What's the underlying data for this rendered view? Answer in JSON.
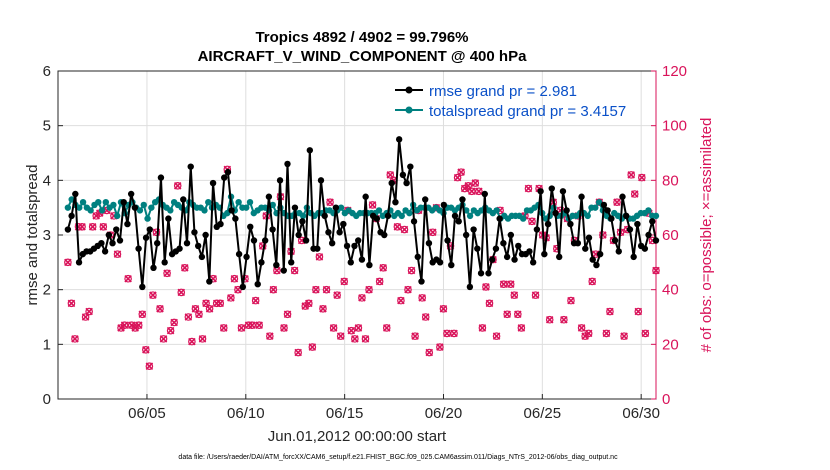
{
  "colors": {
    "rmse": "#000000",
    "spread": "#008080",
    "obs": "#d9135a",
    "legend_text": "#0a50c8"
  },
  "chart_data": {
    "type": "line",
    "title": "Tropics 4892 / 4902 = 99.796%",
    "subtitle": "AIRCRAFT_V_WIND_COMPONENT @ 400 hPa",
    "xlabel": "Jun.01,2012 00:00:00 start",
    "ylabel": "rmse and totalspread",
    "y2label": "# of obs: o=possible; ×=assimilated",
    "xlim": [
      0.5,
      30.75
    ],
    "ylim": [
      0,
      6
    ],
    "y2lim": [
      0,
      120
    ],
    "xticks": [
      5,
      10,
      15,
      20,
      25,
      30
    ],
    "xtick_labels": [
      "06/05",
      "06/10",
      "06/15",
      "06/20",
      "06/25",
      "06/30"
    ],
    "yticks": [
      0,
      1,
      2,
      3,
      4,
      5,
      6
    ],
    "ytick_labels": [
      "0",
      "1",
      "2",
      "3",
      "4",
      "5",
      "6"
    ],
    "y2ticks": [
      0,
      20,
      40,
      60,
      80,
      100,
      120
    ],
    "y2tick_labels": [
      "0",
      "20",
      "40",
      "60",
      "80",
      "100",
      "120"
    ],
    "grid": true,
    "legend_position": "top-right",
    "series": [
      {
        "name": "rmse grand pr = 2.981",
        "axis": "left",
        "values": [
          3.1,
          3.35,
          3.75,
          2.5,
          2.65,
          2.7,
          2.7,
          2.75,
          2.8,
          2.85,
          2.7,
          3.0,
          2.85,
          3.1,
          2.9,
          3.6,
          3.2,
          3.75,
          3.5,
          2.75,
          2.05,
          2.95,
          3.1,
          2.4,
          2.85,
          4.05,
          2.5,
          3.3,
          2.65,
          2.7,
          2.75,
          3.65,
          2.85,
          4.25,
          3.05,
          2.8,
          2.6,
          3.0,
          2.15,
          3.95,
          3.15,
          3.2,
          4.05,
          4.15,
          3.45,
          3.3,
          2.65,
          2.05,
          2.6,
          3.15,
          2.9,
          2.1,
          2.5,
          2.9,
          3.7,
          3.1,
          2.45,
          4.0,
          2.35,
          4.3,
          2.5,
          3.5,
          3.0,
          3.25,
          2.9,
          4.55,
          2.75,
          2.75,
          4.0,
          3.35,
          3.05,
          2.85,
          3.5,
          3.05,
          3.2,
          2.8,
          2.5,
          2.8,
          2.9,
          2.55,
          3.7,
          2.45,
          3.35,
          3.3,
          3.05,
          3.0,
          3.35,
          3.95,
          3.6,
          4.75,
          4.1,
          3.95,
          4.25,
          3.25,
          2.6,
          2.15,
          3.65,
          2.85,
          2.5,
          2.55,
          2.5,
          3.55,
          2.9,
          2.45,
          3.35,
          3.25,
          3.65,
          3.0,
          2.05,
          3.1,
          2.75,
          2.3,
          3.75,
          2.3,
          2.55,
          2.75,
          3.3,
          2.85,
          2.6,
          3.0,
          2.55,
          2.8,
          2.65,
          2.65,
          2.7,
          2.5,
          3.1,
          3.8,
          2.65,
          3.2,
          3.85,
          3.4,
          2.6,
          3.8,
          3.45,
          3.2,
          2.85,
          2.85,
          3.7,
          2.75,
          2.95,
          2.55,
          2.45,
          2.65,
          3.55,
          3.45,
          3.3,
          2.9,
          2.7,
          3.7,
          3.35,
          3.1,
          2.6,
          3.2,
          2.8,
          2.75,
          3.0,
          3.25,
          2.9
        ]
      },
      {
        "name": "totalspread grand pr = 3.4157",
        "axis": "left",
        "values": [
          3.5,
          3.65,
          3.55,
          3.5,
          3.6,
          3.5,
          3.45,
          3.55,
          3.6,
          3.45,
          3.6,
          3.5,
          3.55,
          3.35,
          3.6,
          3.4,
          3.55,
          3.6,
          3.5,
          3.45,
          3.55,
          3.3,
          3.5,
          3.6,
          3.65,
          3.55,
          3.5,
          3.45,
          3.6,
          3.55,
          3.5,
          3.45,
          3.6,
          3.55,
          3.5,
          3.5,
          3.45,
          3.6,
          3.5,
          3.55,
          3.5,
          3.35,
          3.4,
          3.7,
          3.45,
          3.6,
          3.5,
          3.5,
          3.6,
          3.4,
          3.45,
          3.5,
          3.5,
          3.45,
          3.55,
          3.4,
          3.5,
          3.4,
          3.35,
          3.35,
          3.4,
          3.4,
          3.35,
          3.5,
          3.4,
          3.35,
          3.4,
          3.4,
          3.45,
          3.45,
          3.4,
          3.45,
          3.5,
          3.4,
          3.45,
          3.4,
          3.35,
          3.4,
          3.4,
          3.4,
          3.4,
          3.4,
          3.45,
          3.35,
          3.4,
          3.45,
          3.35,
          3.4,
          3.35,
          3.45,
          3.4,
          3.55,
          3.45,
          3.5,
          3.5,
          3.5,
          3.45,
          3.5,
          3.45,
          3.4,
          3.5,
          3.5,
          3.45,
          3.5,
          3.55,
          3.45,
          3.35,
          3.45,
          3.4,
          3.45,
          3.5,
          3.45,
          3.4,
          3.45,
          3.3,
          3.35,
          3.3,
          3.35,
          3.35,
          3.35,
          3.3,
          3.45,
          3.45,
          3.5,
          3.55,
          3.4,
          3.3,
          3.35,
          3.5,
          3.35,
          3.35,
          3.4,
          3.3,
          3.35,
          3.35,
          3.4,
          3.4,
          3.35,
          3.5,
          3.5,
          3.6,
          3.45,
          3.35,
          3.3,
          3.4,
          3.35,
          3.3,
          3.35,
          3.3,
          3.3,
          3.35,
          3.4,
          3.4,
          3.45,
          3.35,
          3.35
        ]
      },
      {
        "name": "# of obs possible",
        "axis": "right",
        "marker": "circle",
        "values": [
          50,
          35,
          22,
          63,
          63,
          30,
          32,
          63,
          67,
          68,
          63,
          69,
          60,
          67,
          53,
          26,
          27,
          44,
          27,
          26,
          27,
          31,
          18,
          12,
          38,
          61,
          33,
          22,
          46,
          25,
          28,
          78,
          39,
          48,
          30,
          21,
          33,
          31,
          22,
          35,
          33,
          44,
          35,
          35,
          26,
          84,
          37,
          44,
          40,
          26,
          44,
          27,
          27,
          36,
          27,
          56,
          67,
          23,
          40,
          47,
          74,
          26,
          31,
          54,
          47,
          17,
          58,
          34,
          35,
          19,
          40,
          52,
          33,
          40,
          72,
          26,
          38,
          23,
          43,
          69,
          25,
          22,
          26,
          37,
          22,
          40,
          71,
          66,
          43,
          48,
          26,
          82,
          80,
          63,
          36,
          62,
          40,
          47,
          23,
          69,
          37,
          30,
          17,
          61,
          70,
          19,
          33,
          24,
          56,
          24,
          81,
          83,
          77,
          78,
          76,
          79,
          76,
          26,
          41,
          35,
          51,
          23,
          69,
          42,
          31,
          42,
          38,
          31,
          26,
          67,
          77,
          65,
          38,
          77,
          60,
          59,
          29,
          72,
          55,
          69,
          29,
          66,
          36,
          58,
          67,
          26,
          23,
          24,
          43,
          53,
          72,
          60,
          24,
          32,
          58,
          72,
          61,
          23,
          62,
          82,
          75,
          32,
          81,
          24,
          68,
          58,
          47
        ]
      },
      {
        "name": "# of obs assimilated",
        "axis": "right",
        "marker": "x",
        "values": [
          50,
          35,
          22,
          63,
          63,
          30,
          32,
          63,
          67,
          68,
          63,
          69,
          60,
          67,
          53,
          26,
          27,
          44,
          27,
          26,
          27,
          31,
          18,
          12,
          38,
          61,
          33,
          22,
          46,
          25,
          28,
          78,
          39,
          48,
          30,
          21,
          33,
          31,
          22,
          35,
          33,
          44,
          35,
          35,
          26,
          84,
          37,
          44,
          40,
          26,
          44,
          27,
          27,
          36,
          27,
          56,
          67,
          23,
          40,
          47,
          74,
          26,
          31,
          54,
          47,
          17,
          58,
          34,
          35,
          19,
          40,
          52,
          33,
          40,
          72,
          26,
          38,
          23,
          43,
          69,
          25,
          22,
          26,
          37,
          22,
          40,
          71,
          66,
          43,
          48,
          26,
          82,
          80,
          63,
          36,
          62,
          40,
          47,
          23,
          69,
          37,
          30,
          17,
          61,
          70,
          19,
          33,
          24,
          56,
          24,
          81,
          83,
          77,
          78,
          76,
          79,
          76,
          26,
          41,
          35,
          51,
          23,
          69,
          42,
          31,
          42,
          38,
          31,
          26,
          67,
          77,
          65,
          38,
          77,
          60,
          59,
          29,
          72,
          55,
          69,
          29,
          66,
          36,
          58,
          67,
          26,
          23,
          24,
          43,
          53,
          72,
          60,
          24,
          32,
          58,
          72,
          61,
          23,
          62,
          82,
          75,
          32,
          81,
          24,
          68,
          58,
          47
        ]
      }
    ],
    "footer": "data file: /Users/raeder/DAI/ATM_forcXX/CAM6_setup/f.e21.FHIST_BGC.f09_025.CAM6assim.011/Diags_NTrS_2012-06/obs_diag_output.nc"
  }
}
